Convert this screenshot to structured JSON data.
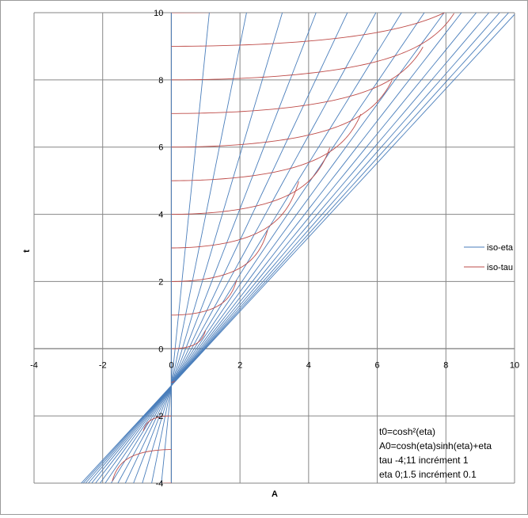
{
  "chart_data": {
    "type": "line",
    "title": "",
    "xlabel": "A",
    "ylabel": "t",
    "xlim": [
      -4,
      10
    ],
    "ylim": [
      -4,
      10
    ],
    "xticks": [
      -4,
      -2,
      0,
      2,
      4,
      6,
      8,
      10
    ],
    "yticks": [
      -4,
      -2,
      0,
      2,
      4,
      6,
      8,
      10
    ],
    "grid": true,
    "legend_position": "right",
    "series": [
      {
        "name": "iso-eta",
        "color": "#4a7ebb",
        "family": "eta",
        "eta_values": [
          0,
          0.1,
          0.2,
          0.3,
          0.4,
          0.5,
          0.6,
          0.7,
          0.8,
          0.9,
          1.0,
          1.1,
          1.2,
          1.3,
          1.4,
          1.5
        ],
        "tau_range": [
          -4,
          11
        ]
      },
      {
        "name": "iso-tau",
        "color": "#be4b48",
        "family": "tau",
        "tau_values": [
          -4,
          -3,
          -2,
          -1,
          0,
          1,
          2,
          3,
          4,
          5,
          6,
          7,
          8,
          9,
          10,
          11
        ],
        "eta_range": [
          0,
          1.5
        ]
      }
    ],
    "annotation": [
      "t0=cosh²(eta)",
      "A0=cosh(eta)sinh(eta)+eta",
      "tau -4;11 incrément 1",
      "eta 0;1.5 incrément 0.1"
    ]
  }
}
